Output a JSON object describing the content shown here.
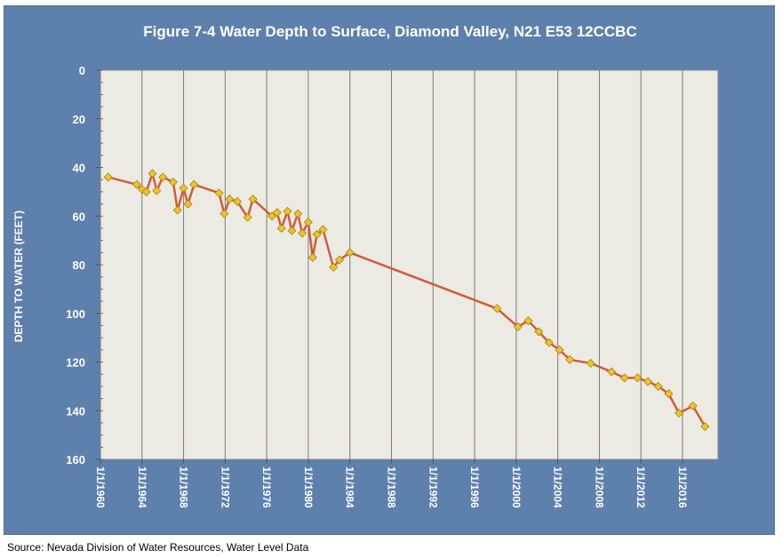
{
  "title": "Figure 7-4 Water Depth to Surface, Diamond Valley, N21 E53 12CCBC",
  "source": "Source: Nevada Division of Water Resources, Water Level Data",
  "colors": {
    "panel": "#5d80ad",
    "plot_area": "#ecebe3",
    "line": "#d35a3a",
    "marker_fill": "#f2c41a",
    "marker_stroke": "#9b8330"
  },
  "chart_data": {
    "type": "line",
    "title": "Figure 7-4 Water Depth to Surface, Diamond Valley, N21 E53 12CCBC",
    "xlabel": "",
    "ylabel": "DEPTH TO WATER (FEET)",
    "y_inverted": true,
    "ylim": [
      0,
      160
    ],
    "y_ticks": [
      "0",
      "20",
      "40",
      "60",
      "80",
      "100",
      "120",
      "140",
      "160"
    ],
    "xlim": [
      "1960-01-01",
      "2019-06-01"
    ],
    "x_ticks": [
      "1/1/1960",
      "1/1/1964",
      "1/1/1968",
      "1/1/1972",
      "1/1/1976",
      "1/1/1980",
      "1/1/1984",
      "1/1/1988",
      "1/1/1992",
      "1/1/1996",
      "1/1/2000",
      "1/1/2004",
      "1/1/2008",
      "1/1/2012",
      "1/1/2016"
    ],
    "grid": "vertical",
    "legend": "none",
    "series": [
      {
        "x": [
          "1960-10",
          "1963-07",
          "1964-01",
          "1964-06",
          "1965-01",
          "1965-06",
          "1966-01",
          "1967-01",
          "1967-06",
          "1968-01",
          "1968-06",
          "1969-01",
          "1971-06",
          "1971-12",
          "1972-06",
          "1973-03",
          "1974-03",
          "1974-09",
          "1976-07",
          "1977-01",
          "1977-06",
          "1978-01",
          "1978-06",
          "1979-01",
          "1979-06",
          "1980-01",
          "1980-06",
          "1980-11",
          "1981-06",
          "1982-06",
          "1983-01",
          "1984-01",
          "1998-03",
          "2000-03",
          "2001-03",
          "2002-03",
          "2003-03",
          "2004-03",
          "2005-03",
          "2007-03",
          "2009-03",
          "2010-06",
          "2011-09",
          "2012-09",
          "2013-09",
          "2014-09",
          "2015-09",
          "2017-01",
          "2018-03"
        ],
        "y": [
          44,
          47,
          49,
          50,
          42.5,
          49.5,
          44,
          46,
          57.5,
          48.5,
          55,
          47,
          50.5,
          59,
          53,
          54,
          60.5,
          53,
          60,
          58.5,
          65,
          58,
          66,
          59,
          67,
          62.5,
          77,
          67.5,
          65.5,
          81,
          78,
          75,
          98,
          105.5,
          103,
          107.5,
          112,
          115,
          119,
          120.5,
          124,
          126.5,
          126.5,
          128,
          130,
          133,
          141,
          138,
          146.5
        ]
      }
    ]
  }
}
